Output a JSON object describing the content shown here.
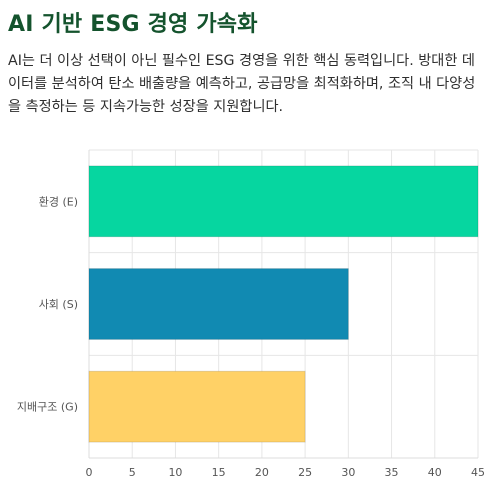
{
  "heading": "AI 기반 ESG 경영 가속화",
  "paragraph": "AI는 더 이상 선택이 아닌 필수인 ESG 경영을 위한 핵심 동력입니다. 방대한 데이터를 분석하여 탄소 배출량을 예측하고, 공급망을 최적화하며, 조직 내 다양성을 측정하는 등 지속가능한 성장을 지원합니다.",
  "chart_data": {
    "type": "bar",
    "orientation": "horizontal",
    "categories": [
      "환경 (E)",
      "사회 (S)",
      "지배구조 (G)"
    ],
    "values": [
      45,
      30,
      25
    ],
    "colors": [
      "#06d6a0",
      "#118ab2",
      "#ffd166"
    ],
    "xlim": [
      0,
      45
    ],
    "xticks": [
      0,
      5,
      10,
      15,
      20,
      25,
      30,
      35,
      40,
      45
    ],
    "grid": true,
    "title": "",
    "xlabel": "",
    "ylabel": ""
  }
}
